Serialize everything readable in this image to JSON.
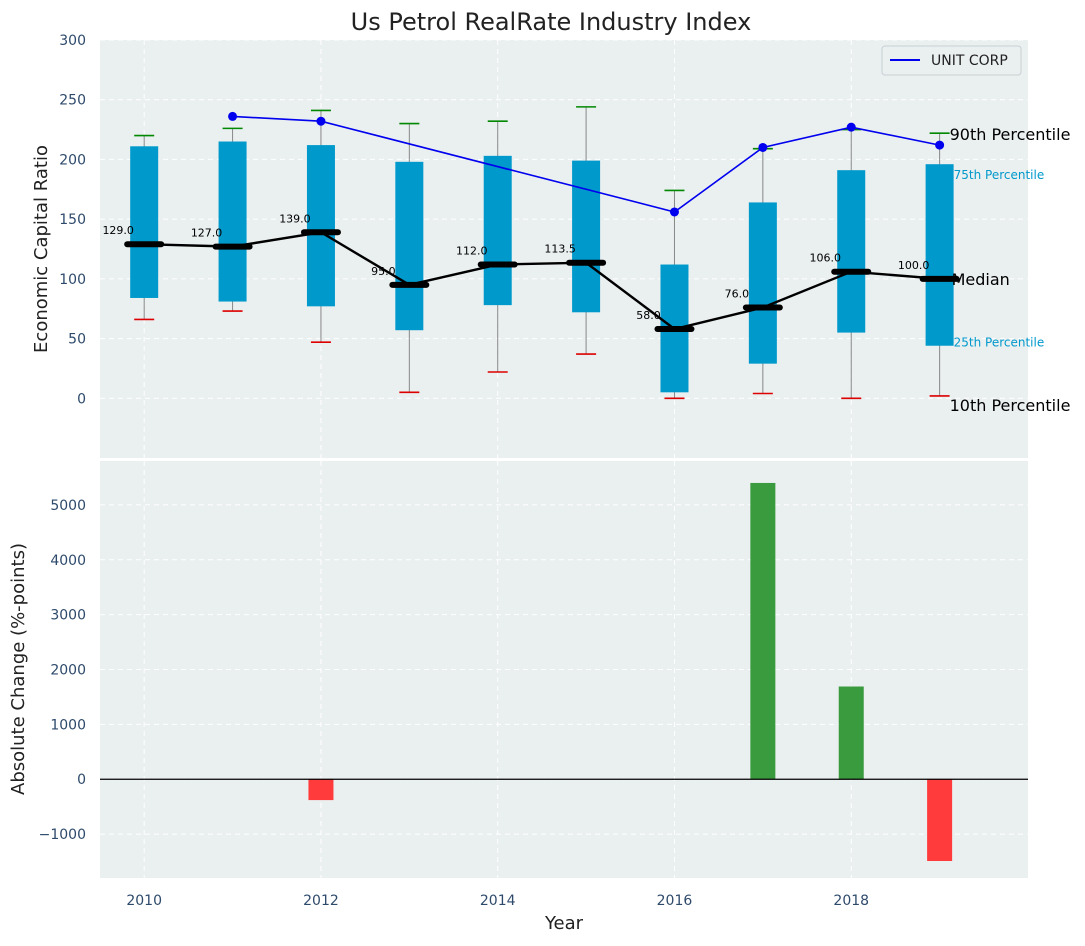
{
  "figure": {
    "title": "Us Petrol RealRate Industry Index"
  },
  "colors": {
    "background": "#eaeff0",
    "grid": "#ffffff",
    "box": "#0099cc",
    "median": "#000000",
    "whisker_top": "#008800",
    "whisker_bottom": "#dd0000",
    "unit_line": "#0000ee",
    "positive_bar": "#3a9a3e",
    "negative_bar": "#ff3b3b",
    "axis_text": "#2e4a6b",
    "percentile_text": "#0099cc"
  },
  "chart_data": [
    {
      "type": "box",
      "title": "Us Petrol RealRate Industry Index",
      "xlabel": "",
      "ylabel": "Economic Capital Ratio",
      "x": [
        2010,
        2011,
        2012,
        2013,
        2014,
        2015,
        2016,
        2017,
        2018,
        2019
      ],
      "xlim": [
        2009.5,
        2020.0
      ],
      "ylim": [
        -50,
        300
      ],
      "yticks": [
        0,
        50,
        100,
        150,
        200,
        250,
        300
      ],
      "grid": true,
      "p10": [
        66,
        73,
        47,
        5,
        22,
        37,
        0,
        4,
        0,
        2
      ],
      "p25": [
        84,
        81,
        77,
        57,
        78,
        72,
        5,
        29,
        55,
        44
      ],
      "median": [
        129.0,
        127.0,
        139.0,
        95.0,
        112.0,
        113.5,
        58.0,
        76.0,
        106.0,
        100.0
      ],
      "median_labels": [
        "129.0",
        "127.0",
        "139.0",
        "95.0",
        "112.0",
        "113.5",
        "58.0",
        "76.0",
        "106.0",
        "100.0"
      ],
      "p75": [
        211,
        215,
        212,
        198,
        203,
        199,
        112,
        164,
        191,
        196
      ],
      "p90": [
        220,
        226,
        241,
        230,
        232,
        244,
        174,
        209,
        225,
        222
      ],
      "series": [
        {
          "name": "UNIT CORP",
          "x": [
            2011,
            2012,
            2016,
            2017,
            2018,
            2019
          ],
          "values": [
            236,
            232,
            156,
            210,
            227,
            212
          ]
        }
      ],
      "legend": {
        "position": "top-right",
        "entries": [
          "UNIT CORP"
        ]
      },
      "percentile_labels": {
        "p90": "90th Percentile",
        "p75": "75th Percentile",
        "median": "Median",
        "p25": "25th Percentile",
        "p10": "10th Percentile"
      }
    },
    {
      "type": "bar",
      "xlabel": "Year",
      "ylabel": "Absolute Change (%-points)",
      "x": [
        2012,
        2017,
        2018,
        2019
      ],
      "values": [
        -380,
        5400,
        1690,
        -1490
      ],
      "xlim": [
        2009.5,
        2020.0
      ],
      "ylim": [
        -1800,
        5800
      ],
      "yticks": [
        -1000,
        0,
        1000,
        2000,
        3000,
        4000,
        5000
      ],
      "xticks": [
        2010,
        2012,
        2014,
        2016,
        2018
      ],
      "grid": true
    }
  ]
}
